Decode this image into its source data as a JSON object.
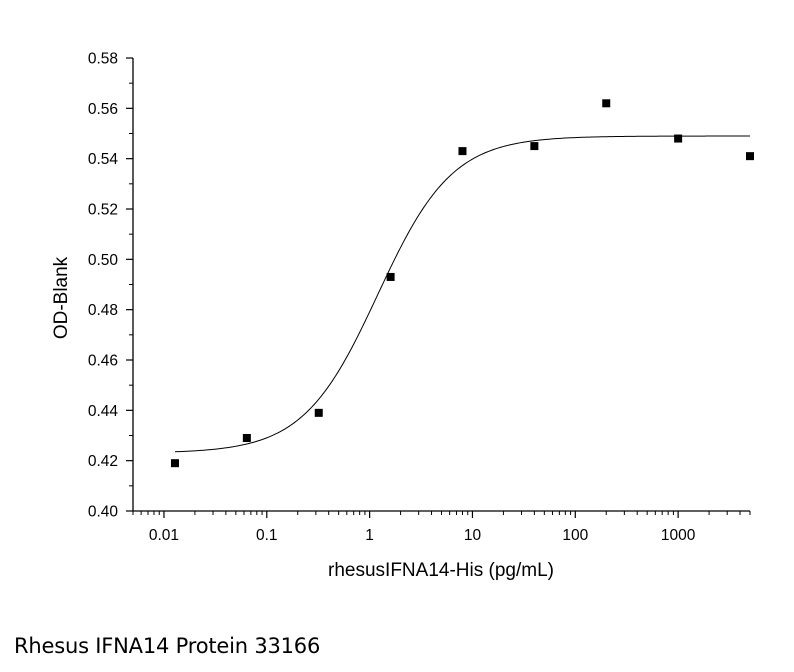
{
  "chart_data": {
    "type": "scatter",
    "title": "",
    "xlabel": "rhesusIFNA14-His (pg/mL)",
    "ylabel": "OD-Blank",
    "xscale": "log",
    "xlim": [
      0.005,
      5000
    ],
    "ylim": [
      0.4,
      0.58
    ],
    "xticks": [
      0.01,
      0.1,
      1,
      10,
      100,
      1000
    ],
    "xtick_labels": [
      "0.01",
      "0.1",
      "1",
      "10",
      "100",
      "1000"
    ],
    "yticks": [
      0.4,
      0.42,
      0.44,
      0.46,
      0.48,
      0.5,
      0.52,
      0.54,
      0.56,
      0.58
    ],
    "ytick_labels": [
      "0.40",
      "0.42",
      "0.44",
      "0.46",
      "0.48",
      "0.50",
      "0.52",
      "0.54",
      "0.56",
      "0.58"
    ],
    "grid": false,
    "legend": "none",
    "series": [
      {
        "kind": "points",
        "marker": "square",
        "x": [
          0.0128,
          0.064,
          0.32,
          1.6,
          8,
          40,
          200,
          1000,
          5000
        ],
        "y": [
          0.419,
          0.429,
          0.439,
          0.493,
          0.543,
          0.545,
          0.562,
          0.548,
          0.541
        ]
      },
      {
        "kind": "fit",
        "model": "four-parameter logistic",
        "bottom": 0.423,
        "top": 0.549,
        "ec50": 1.2,
        "hill": 1.2,
        "x_range": [
          0.0128,
          5000
        ]
      }
    ],
    "colors": {
      "points": "#000000",
      "fit": "#000000",
      "axes": "#000000"
    }
  },
  "caption": "Rhesus IFNA14 Protein 33166"
}
